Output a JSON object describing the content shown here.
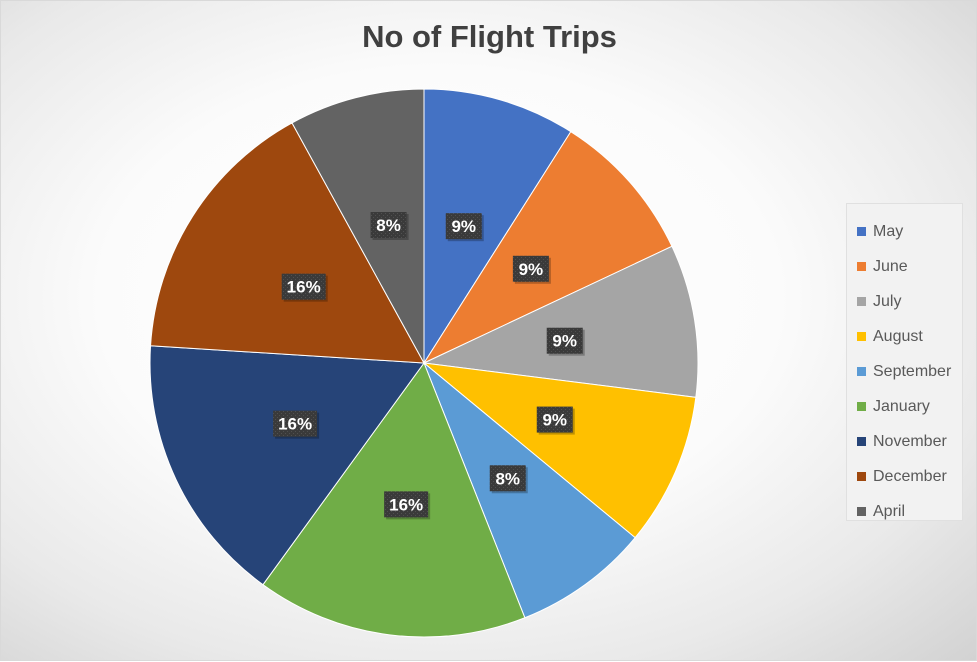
{
  "chart_data": {
    "type": "pie",
    "title": "No of Flight Trips",
    "legend_position": "right",
    "slices": [
      {
        "label": "May",
        "value": 9,
        "display": "9%",
        "color": "#4472C4"
      },
      {
        "label": "June",
        "value": 9,
        "display": "9%",
        "color": "#ED7D31"
      },
      {
        "label": "July",
        "value": 9,
        "display": "9%",
        "color": "#A5A5A5"
      },
      {
        "label": "August",
        "value": 9,
        "display": "9%",
        "color": "#FFC000"
      },
      {
        "label": "September",
        "value": 8,
        "display": "8%",
        "color": "#5B9BD5"
      },
      {
        "label": "January",
        "value": 16,
        "display": "16%",
        "color": "#70AD47"
      },
      {
        "label": "November",
        "value": 16,
        "display": "16%",
        "color": "#264478"
      },
      {
        "label": "December",
        "value": 16,
        "display": "16%",
        "color": "#9E480E"
      },
      {
        "label": "April",
        "value": 8,
        "display": "8%",
        "color": "#636363"
      }
    ]
  }
}
